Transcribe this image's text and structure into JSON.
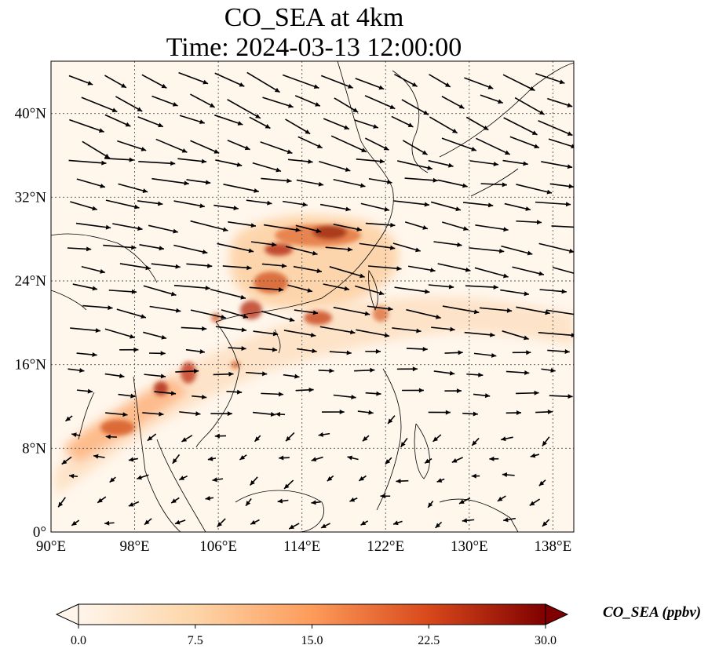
{
  "title": {
    "line1": "CO_SEA at 4km",
    "line2": "Time: 2024-03-13 12:00:00"
  },
  "map": {
    "lon_range": [
      90,
      140
    ],
    "lat_range": [
      0,
      45
    ],
    "x_ticks": [
      {
        "value": 90,
        "label": "90°E"
      },
      {
        "value": 98,
        "label": "98°E"
      },
      {
        "value": 106,
        "label": "106°E"
      },
      {
        "value": 114,
        "label": "114°E"
      },
      {
        "value": 122,
        "label": "122°E"
      },
      {
        "value": 130,
        "label": "130°E"
      },
      {
        "value": 138,
        "label": "138°E"
      }
    ],
    "y_ticks": [
      {
        "value": 0,
        "label": "0°"
      },
      {
        "value": 8,
        "label": "8°N"
      },
      {
        "value": 16,
        "label": "16°N"
      },
      {
        "value": 24,
        "label": "24°N"
      },
      {
        "value": 32,
        "label": "32°N"
      },
      {
        "value": 40,
        "label": "40°N"
      }
    ],
    "gridlines": true,
    "coastlines": true,
    "wind_vectors": true,
    "field_colors": {
      "low": "#fff5eb",
      "mid": "#fdae6b",
      "high": "#d94801",
      "max": "#7f2704"
    }
  },
  "colorbar": {
    "label": "CO_SEA (ppbv)",
    "min": 0.0,
    "max": 30.0,
    "extend": "both",
    "ticks": [
      {
        "value": 0,
        "label": "0.0"
      },
      {
        "value": 7.5,
        "label": "7.5"
      },
      {
        "value": 15,
        "label": "15.0"
      },
      {
        "value": 22.5,
        "label": "22.5"
      },
      {
        "value": 30,
        "label": "30.0"
      }
    ]
  }
}
